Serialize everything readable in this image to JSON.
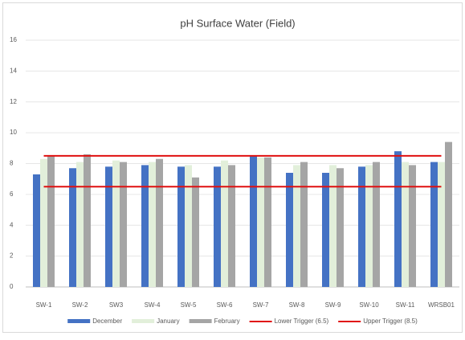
{
  "chart_data": {
    "type": "bar",
    "title": "pH Surface Water (Field)",
    "categories": [
      "SW-1",
      "SW-2",
      "SW3",
      "SW-4",
      "SW-5",
      "SW-6",
      "SW-7",
      "SW-8",
      "SW-9",
      "SW-10",
      "SW-11",
      "WRSB01"
    ],
    "series": [
      {
        "name": "December",
        "type": "bar",
        "color": "#4472c4",
        "values": [
          7.3,
          7.7,
          7.8,
          7.9,
          7.8,
          7.8,
          8.5,
          7.4,
          7.4,
          7.8,
          8.8,
          8.1
        ]
      },
      {
        "name": "January",
        "type": "bar",
        "color": "#e2efda",
        "values": [
          8.3,
          8.1,
          8.2,
          8.1,
          7.9,
          8.2,
          8.4,
          7.9,
          7.9,
          7.9,
          8.1,
          8.1
        ]
      },
      {
        "name": "February",
        "type": "bar",
        "color": "#a5a5a5",
        "values": [
          8.5,
          8.6,
          8.1,
          8.3,
          7.1,
          7.9,
          8.4,
          8.1,
          7.7,
          8.1,
          7.9,
          9.4
        ]
      },
      {
        "name": "Lower Trigger (6.5)",
        "type": "line",
        "color": "#e01010",
        "values": [
          6.5,
          6.5,
          6.5,
          6.5,
          6.5,
          6.5,
          6.5,
          6.5,
          6.5,
          6.5,
          6.5,
          6.5
        ]
      },
      {
        "name": "Upper Trigger (8.5)",
        "type": "line",
        "color": "#e01010",
        "values": [
          8.5,
          8.5,
          8.5,
          8.5,
          8.5,
          8.5,
          8.5,
          8.5,
          8.5,
          8.5,
          8.5,
          8.5
        ]
      }
    ],
    "ylim": [
      0,
      16
    ],
    "yticks": [
      0,
      2,
      4,
      6,
      8,
      10,
      12,
      14,
      16
    ],
    "grid": true,
    "legend": "bottom"
  }
}
